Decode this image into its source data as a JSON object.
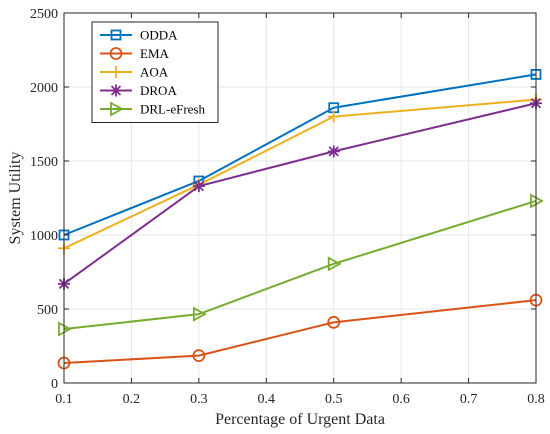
{
  "chart_data": {
    "type": "line",
    "title": "",
    "xlabel": "Percentage of Urgent Data",
    "ylabel": "System Utility",
    "x": [
      0.1,
      0.3,
      0.5,
      0.8
    ],
    "xlim": [
      0.1,
      0.8
    ],
    "ylim": [
      0,
      2500
    ],
    "xticks": [
      "0.1",
      "0.2",
      "0.3",
      "0.4",
      "0.5",
      "0.6",
      "0.7",
      "0.8"
    ],
    "yticks": [
      "0",
      "500",
      "1000",
      "1500",
      "2000",
      "2500"
    ],
    "grid": true,
    "legend": "top-left",
    "series": [
      {
        "name": "ODDA",
        "values": [
          1000,
          1365,
          1860,
          2085
        ],
        "color": "#0072BD",
        "marker": "square"
      },
      {
        "name": "EMA",
        "values": [
          135,
          185,
          410,
          560
        ],
        "color": "#D95319",
        "marker": "circle"
      },
      {
        "name": "AOA",
        "values": [
          910,
          1340,
          1800,
          1915
        ],
        "color": "#EDB120",
        "marker": "plus"
      },
      {
        "name": "DROA",
        "values": [
          670,
          1330,
          1565,
          1890
        ],
        "color": "#7E2F8E",
        "marker": "star"
      },
      {
        "name": "DRL-eFresh",
        "values": [
          365,
          465,
          805,
          1230
        ],
        "color": "#77AC30",
        "marker": "triangle-right"
      }
    ]
  }
}
